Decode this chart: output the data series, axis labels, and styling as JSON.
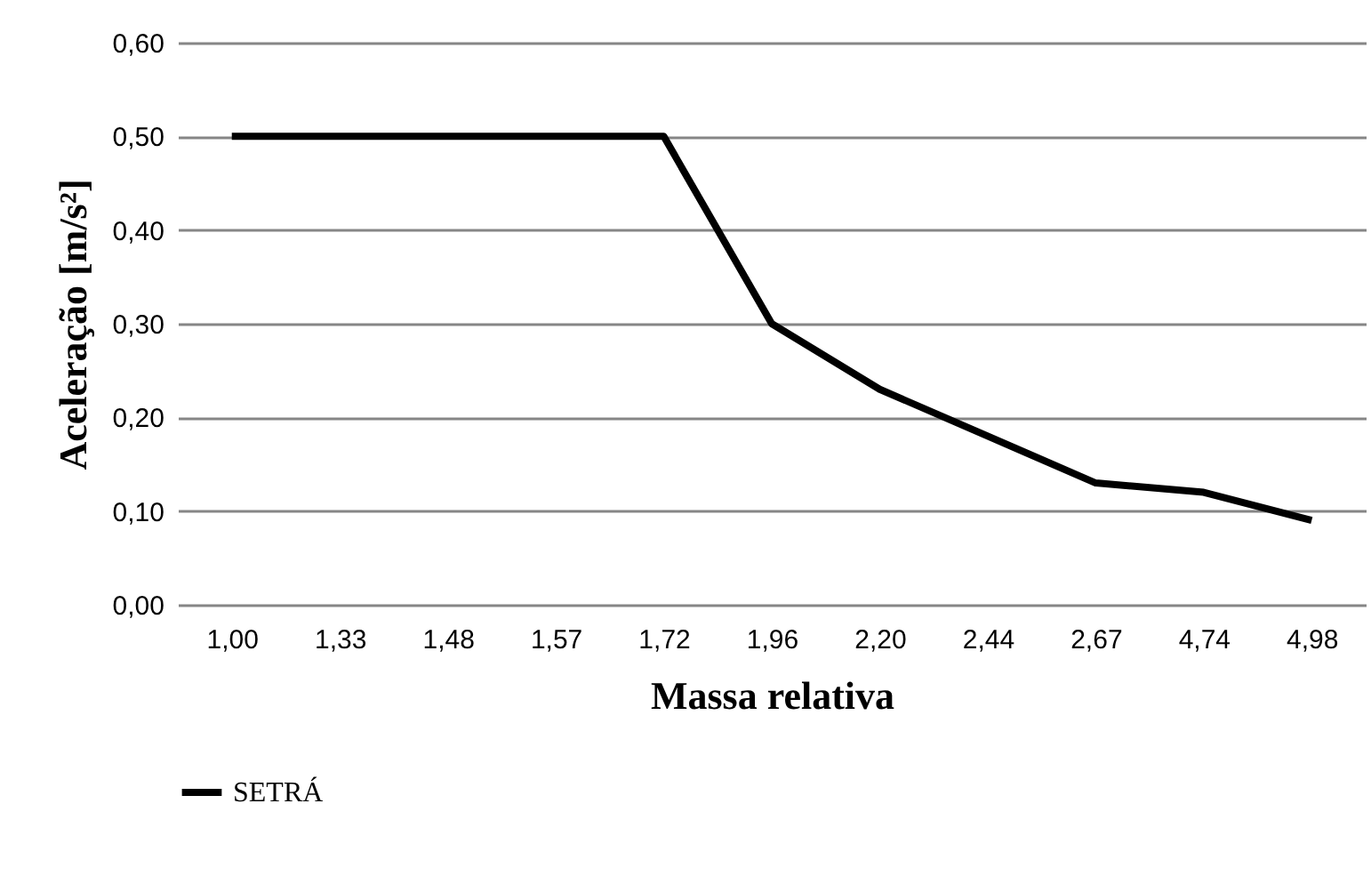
{
  "chart_data": {
    "type": "line",
    "xlabel": "Massa relativa",
    "ylabel": "Aceleração [m/s²]",
    "categories": [
      "1,00",
      "1,33",
      "1,48",
      "1,57",
      "1,72",
      "1,96",
      "2,20",
      "2,44",
      "2,67",
      "4,74",
      "4,98"
    ],
    "series": [
      {
        "name": "SETRÁ",
        "color": "#000000",
        "values": [
          0.5,
          0.5,
          0.5,
          0.5,
          0.5,
          0.3,
          0.23,
          0.18,
          0.13,
          0.12,
          0.09
        ]
      }
    ],
    "ylim": [
      0,
      0.6
    ],
    "yticks": [
      {
        "value": 0,
        "label": "0,00"
      },
      {
        "value": 0.1,
        "label": "0,10"
      },
      {
        "value": 0.2,
        "label": "0,20"
      },
      {
        "value": 0.3,
        "label": "0,30"
      },
      {
        "value": 0.4,
        "label": "0,40"
      },
      {
        "value": 0.5,
        "label": "0,50"
      },
      {
        "value": 0.6,
        "label": "0,60"
      }
    ],
    "grid": "y",
    "legend": "bottom",
    "marker": "none",
    "line_style": "solid"
  }
}
